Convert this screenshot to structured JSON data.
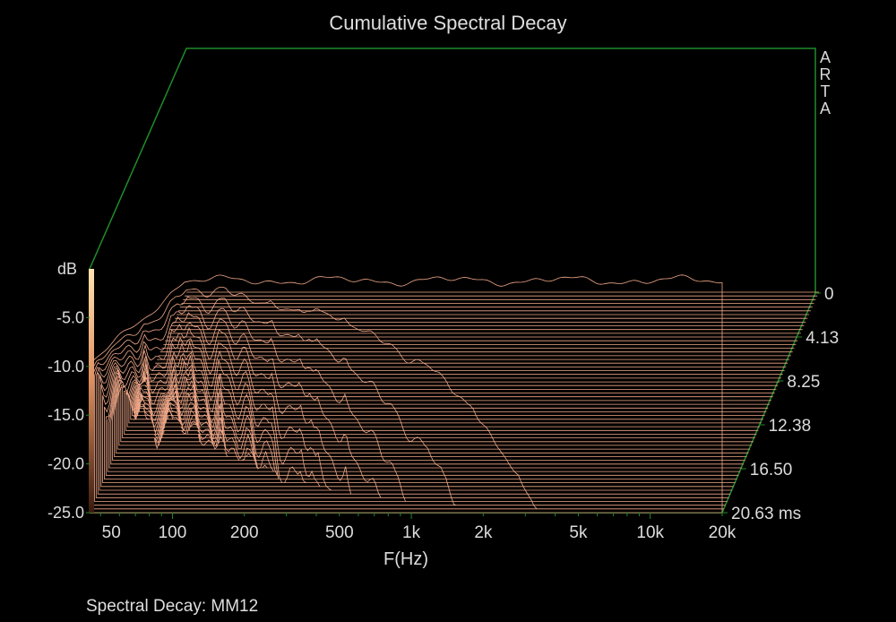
{
  "chart_data": {
    "type": "waterfall",
    "title": "Cumulative Spectral Decay",
    "xlabel": "F(Hz)",
    "ylabel": "dB",
    "zlabel_unit": "ms",
    "x_ticks": [
      50,
      100,
      200,
      500,
      "1k",
      "2k",
      "5k",
      "10k",
      "20k"
    ],
    "y_ticks": [
      "-5.0",
      "-10.0",
      "-15.0",
      "-20.0",
      "-25.0"
    ],
    "z_ticks": [
      "0",
      "4.13",
      "8.25",
      "12.38",
      "16.50",
      "20.63 ms"
    ],
    "x_range_hz": [
      45,
      20000
    ],
    "y_range_db": [
      -25,
      0
    ],
    "time_range_ms": [
      0,
      20.63
    ],
    "slice_count": 60,
    "curve_color": "#f0a888",
    "frame_color": "#1f8c2a",
    "colorbar": [
      "#ffe0b0",
      "#e08858",
      "#402010"
    ]
  },
  "caption": "Spectral Decay: MM12",
  "watermark_letters": [
    "A",
    "R",
    "T",
    "A"
  ]
}
